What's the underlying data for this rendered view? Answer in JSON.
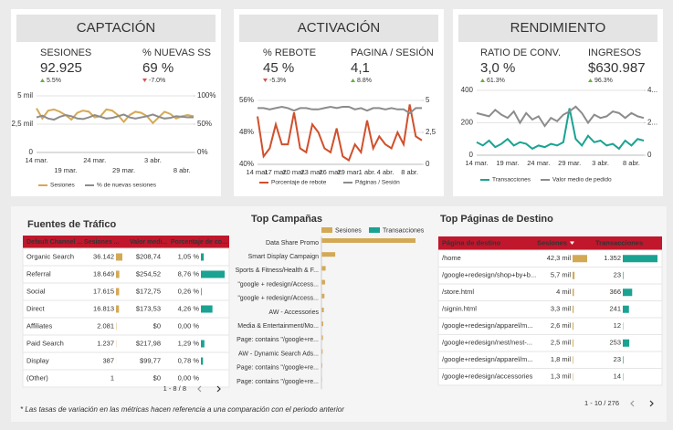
{
  "cards": [
    {
      "title": "CAPTACIÓN",
      "metrics": [
        {
          "label": "SESIONES",
          "value": "92.925",
          "change": "5.5%"
        },
        {
          "label": "% NUEVAS SS",
          "value": "69 %",
          "change": "-7.0%"
        }
      ]
    },
    {
      "title": "ACTIVACIÓN",
      "metrics": [
        {
          "label": "% REBOTE",
          "value": "45 %",
          "change": "-5.3%"
        },
        {
          "label": "PAGINA / SESIÓN",
          "value": "4,1",
          "change": "8.8%"
        }
      ]
    },
    {
      "title": "RENDIMIENTO",
      "metrics": [
        {
          "label": "RATIO DE CONV.",
          "value": "3,0 %",
          "change": "61.3%"
        },
        {
          "label": "INGRESOS",
          "value": "$630.987",
          "change": "96.3%"
        }
      ]
    }
  ],
  "chart_data": [
    {
      "type": "line",
      "grid": true,
      "categories": [
        "14 mar.",
        null,
        null,
        null,
        null,
        "19 mar.",
        null,
        null,
        null,
        null,
        "24 mar.",
        null,
        null,
        null,
        null,
        "29 mar.",
        null,
        null,
        null,
        null,
        "3 abr.",
        null,
        null,
        null,
        null,
        "8 abr.",
        null,
        null
      ],
      "ylim": [
        0,
        5000
      ],
      "yticks": [
        0,
        {
          "value": 2500,
          "label": "2,5 mil"
        },
        {
          "value": 5000,
          "label": "5 mil"
        }
      ],
      "y2lim": [
        0,
        100
      ],
      "y2ticks": [
        {
          "value": 0,
          "label": "0%"
        },
        {
          "value": 50,
          "label": "50%"
        },
        {
          "value": 100,
          "label": "100%"
        }
      ],
      "series": [
        {
          "name": "Sesiones",
          "color": "#d4a955",
          "values": [
            3900,
            3000,
            3700,
            3800,
            3600,
            3300,
            2900,
            3500,
            3700,
            3600,
            3100,
            3200,
            3800,
            3700,
            3300,
            2700,
            3300,
            3600,
            3500,
            3200,
            2600,
            3100,
            3600,
            3400,
            3000,
            3200,
            3300,
            3200
          ]
        },
        {
          "name": "% de nuevas sesiones",
          "color": "#8c8c8c",
          "axis": "y2",
          "values": [
            62,
            65,
            60,
            58,
            63,
            66,
            64,
            60,
            59,
            62,
            66,
            63,
            60,
            61,
            64,
            67,
            62,
            60,
            62,
            64,
            67,
            63,
            60,
            61,
            64,
            63,
            62,
            62
          ]
        }
      ]
    },
    {
      "type": "line",
      "grid": true,
      "categories": [
        "14 mar.",
        null,
        null,
        "17 mar.",
        null,
        null,
        "20 mar.",
        null,
        null,
        "23 mar.",
        null,
        null,
        "26 mar.",
        null,
        null,
        "29 mar.",
        null,
        null,
        "1 abr.",
        null,
        null,
        "4 abr.",
        null,
        null,
        null,
        "8 abr.",
        null,
        null
      ],
      "ylim": [
        40,
        56
      ],
      "yticks": [
        {
          "value": 40,
          "label": "40%"
        },
        {
          "value": 48,
          "label": "48%"
        },
        {
          "value": 56,
          "label": "56%"
        }
      ],
      "y2lim": [
        0,
        5
      ],
      "y2ticks": [
        0,
        {
          "value": 2.5,
          "label": "2,5"
        },
        5
      ],
      "series": [
        {
          "name": "Porcentaje de rebote",
          "color": "#d0502c",
          "values": [
            52,
            42,
            44,
            50,
            45,
            45,
            53,
            44,
            43,
            50,
            48,
            44,
            43,
            49,
            42,
            41,
            45,
            43,
            51,
            44,
            47,
            45,
            44,
            48,
            45,
            55,
            47,
            46
          ]
        },
        {
          "name": "Páginas / Sesión",
          "color": "#8c8c8c",
          "axis": "y2",
          "values": [
            4.4,
            4.4,
            4.3,
            4.4,
            4.5,
            4.4,
            4.2,
            4.4,
            4.4,
            4.3,
            4.3,
            4.4,
            4.5,
            4.4,
            4.5,
            4.5,
            4.3,
            4.4,
            4.2,
            4.4,
            4.4,
            4.3,
            4.4,
            4.3,
            4.3,
            4.0,
            4.4,
            4.4
          ]
        }
      ]
    },
    {
      "type": "line",
      "grid": true,
      "categories": [
        "14 mar.",
        null,
        null,
        null,
        null,
        "19 mar.",
        null,
        null,
        null,
        null,
        "24 mar.",
        null,
        null,
        null,
        null,
        "29 mar.",
        null,
        null,
        null,
        null,
        "3 abr.",
        null,
        null,
        null,
        null,
        "8 abr.",
        null,
        null
      ],
      "ylim": [
        0,
        400
      ],
      "yticks": [
        0,
        200,
        400
      ],
      "y2lim": [
        0,
        400
      ],
      "y2ticks": [
        0,
        {
          "value": 200,
          "label": "2..."
        },
        {
          "value": 400,
          "label": "4..."
        }
      ],
      "series": [
        {
          "name": "Transacciones",
          "color": "#1aa392",
          "values": [
            80,
            60,
            90,
            50,
            70,
            100,
            60,
            80,
            70,
            40,
            60,
            50,
            70,
            60,
            80,
            290,
            100,
            60,
            120,
            80,
            90,
            60,
            70,
            40,
            90,
            60,
            100,
            90
          ]
        },
        {
          "name": "Valor medio de pedido",
          "color": "#8c8c8c",
          "axis": "y2",
          "values": [
            260,
            250,
            240,
            280,
            250,
            230,
            270,
            200,
            260,
            220,
            240,
            180,
            230,
            210,
            250,
            270,
            300,
            260,
            200,
            250,
            230,
            240,
            270,
            260,
            230,
            260,
            240,
            230
          ]
        }
      ]
    },
    {
      "type": "hbar",
      "title": "Top Campañas",
      "categories": [
        "Data Share Promo",
        "Smart Display Campaign",
        "Sports & Fitness/Health & F...",
        "\"google + redesign/Access...",
        "\"google + redesign/Access...",
        "AW - Accessories",
        "Media & Entertainment/Mo...",
        "Page: contains \"/google+re...",
        "AW - Dynamic Search Ads...",
        "Page: contains \"/google+re...",
        "Page: contains \"/google+re..."
      ],
      "series": [
        {
          "name": "Sesiones",
          "color": "#d4a955",
          "values": [
            1570,
            230,
            70,
            60,
            50,
            40,
            30,
            25,
            20,
            15,
            10
          ]
        },
        {
          "name": "Transacciones",
          "color": "#1aa392",
          "values": [
            0,
            0,
            0,
            0,
            0,
            0,
            0,
            0,
            0,
            0,
            0
          ]
        }
      ]
    }
  ],
  "traffic_sources": {
    "title": "Fuentes de Tráfico",
    "columns": [
      "Default Channel ...",
      "Sesiones ...",
      "Valor medi...",
      "Porcentaje de co..."
    ],
    "channels": [
      "Organic Search",
      "Referral",
      "Social",
      "Direct",
      "Affiliates",
      "Paid Search",
      "Display",
      "(Other)"
    ],
    "sessions": {
      "values": [
        36142,
        18649,
        17615,
        16813,
        2081,
        1237,
        387,
        1
      ],
      "value_labels": [
        "36.142",
        "18.649",
        "17.615",
        "16.813",
        "2.081",
        "1.237",
        "387",
        "1"
      ]
    },
    "avg_value": [
      "$208,74",
      "$254,52",
      "$172,75",
      "$173,53",
      "$0",
      "$217,98",
      "$99,77",
      "$0"
    ],
    "conversion": {
      "values": [
        1.05,
        8.76,
        0.26,
        4.26,
        0,
        1.29,
        0.78,
        0
      ],
      "value_labels": [
        "1,05 %",
        "8,76 %",
        "0,26 %",
        "4,26 %",
        "0,00 %",
        "1,29 %",
        "0,78 %",
        "0,00 %"
      ]
    },
    "pagination": "1 - 8 / 8"
  },
  "landing_pages": {
    "title": "Top Páginas de Destino",
    "columns": [
      "Página de destino",
      "Sesiones",
      "Transacciones"
    ],
    "pages": [
      "/home",
      "/google+redesign/shop+by+b...",
      "/store.html",
      "/signin.html",
      "/google+redesign/apparel/m...",
      "/google+redesign/nest/nest-...",
      "/google+redesign/apparel/m...",
      "/google+redesign/accessories"
    ],
    "sessions": {
      "values": [
        42300,
        5700,
        4000,
        3300,
        2600,
        2500,
        1800,
        1300
      ],
      "value_labels": [
        "42,3 mil",
        "5,7 mil",
        "4 mil",
        "3,3 mil",
        "2,6 mil",
        "2,5 mil",
        "1,8 mil",
        "1,3 mil"
      ]
    },
    "transactions": {
      "values": [
        1352,
        23,
        366,
        241,
        12,
        253,
        23,
        14
      ],
      "value_labels": [
        "1.352",
        "23",
        "366",
        "241",
        "12",
        "253",
        "23",
        "14"
      ]
    },
    "pagination": "1 - 10 / 276"
  },
  "footnote": "* Las tasas de variación en las métricas hacen referencia a una comparación con el periodo anterior"
}
